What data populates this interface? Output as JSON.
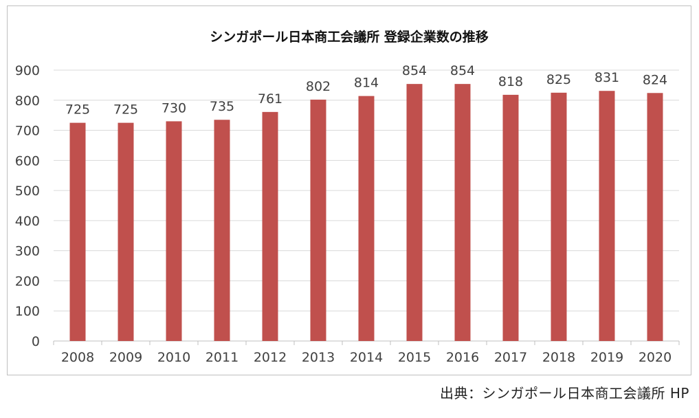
{
  "chart_data": {
    "type": "bar",
    "title": "シンガポール日本商工会議所 登録企業数の推移",
    "categories": [
      "2008",
      "2009",
      "2010",
      "2011",
      "2012",
      "2013",
      "2014",
      "2015",
      "2016",
      "2017",
      "2018",
      "2019",
      "2020"
    ],
    "values": [
      725,
      725,
      730,
      735,
      761,
      802,
      814,
      854,
      854,
      818,
      825,
      831,
      824
    ],
    "data_labels": [
      "725",
      "725",
      "730",
      "735",
      "761",
      "802",
      "814",
      "854",
      "854",
      "818",
      "825",
      "831",
      "824"
    ],
    "ylim": [
      0,
      900
    ],
    "yticks": [
      0,
      100,
      200,
      300,
      400,
      500,
      600,
      700,
      800,
      900
    ],
    "xlabel": "",
    "ylabel": "",
    "grid": true,
    "bar_color": "#c0504d"
  },
  "source": "出典：シンガポール日本商工会議所 HP"
}
